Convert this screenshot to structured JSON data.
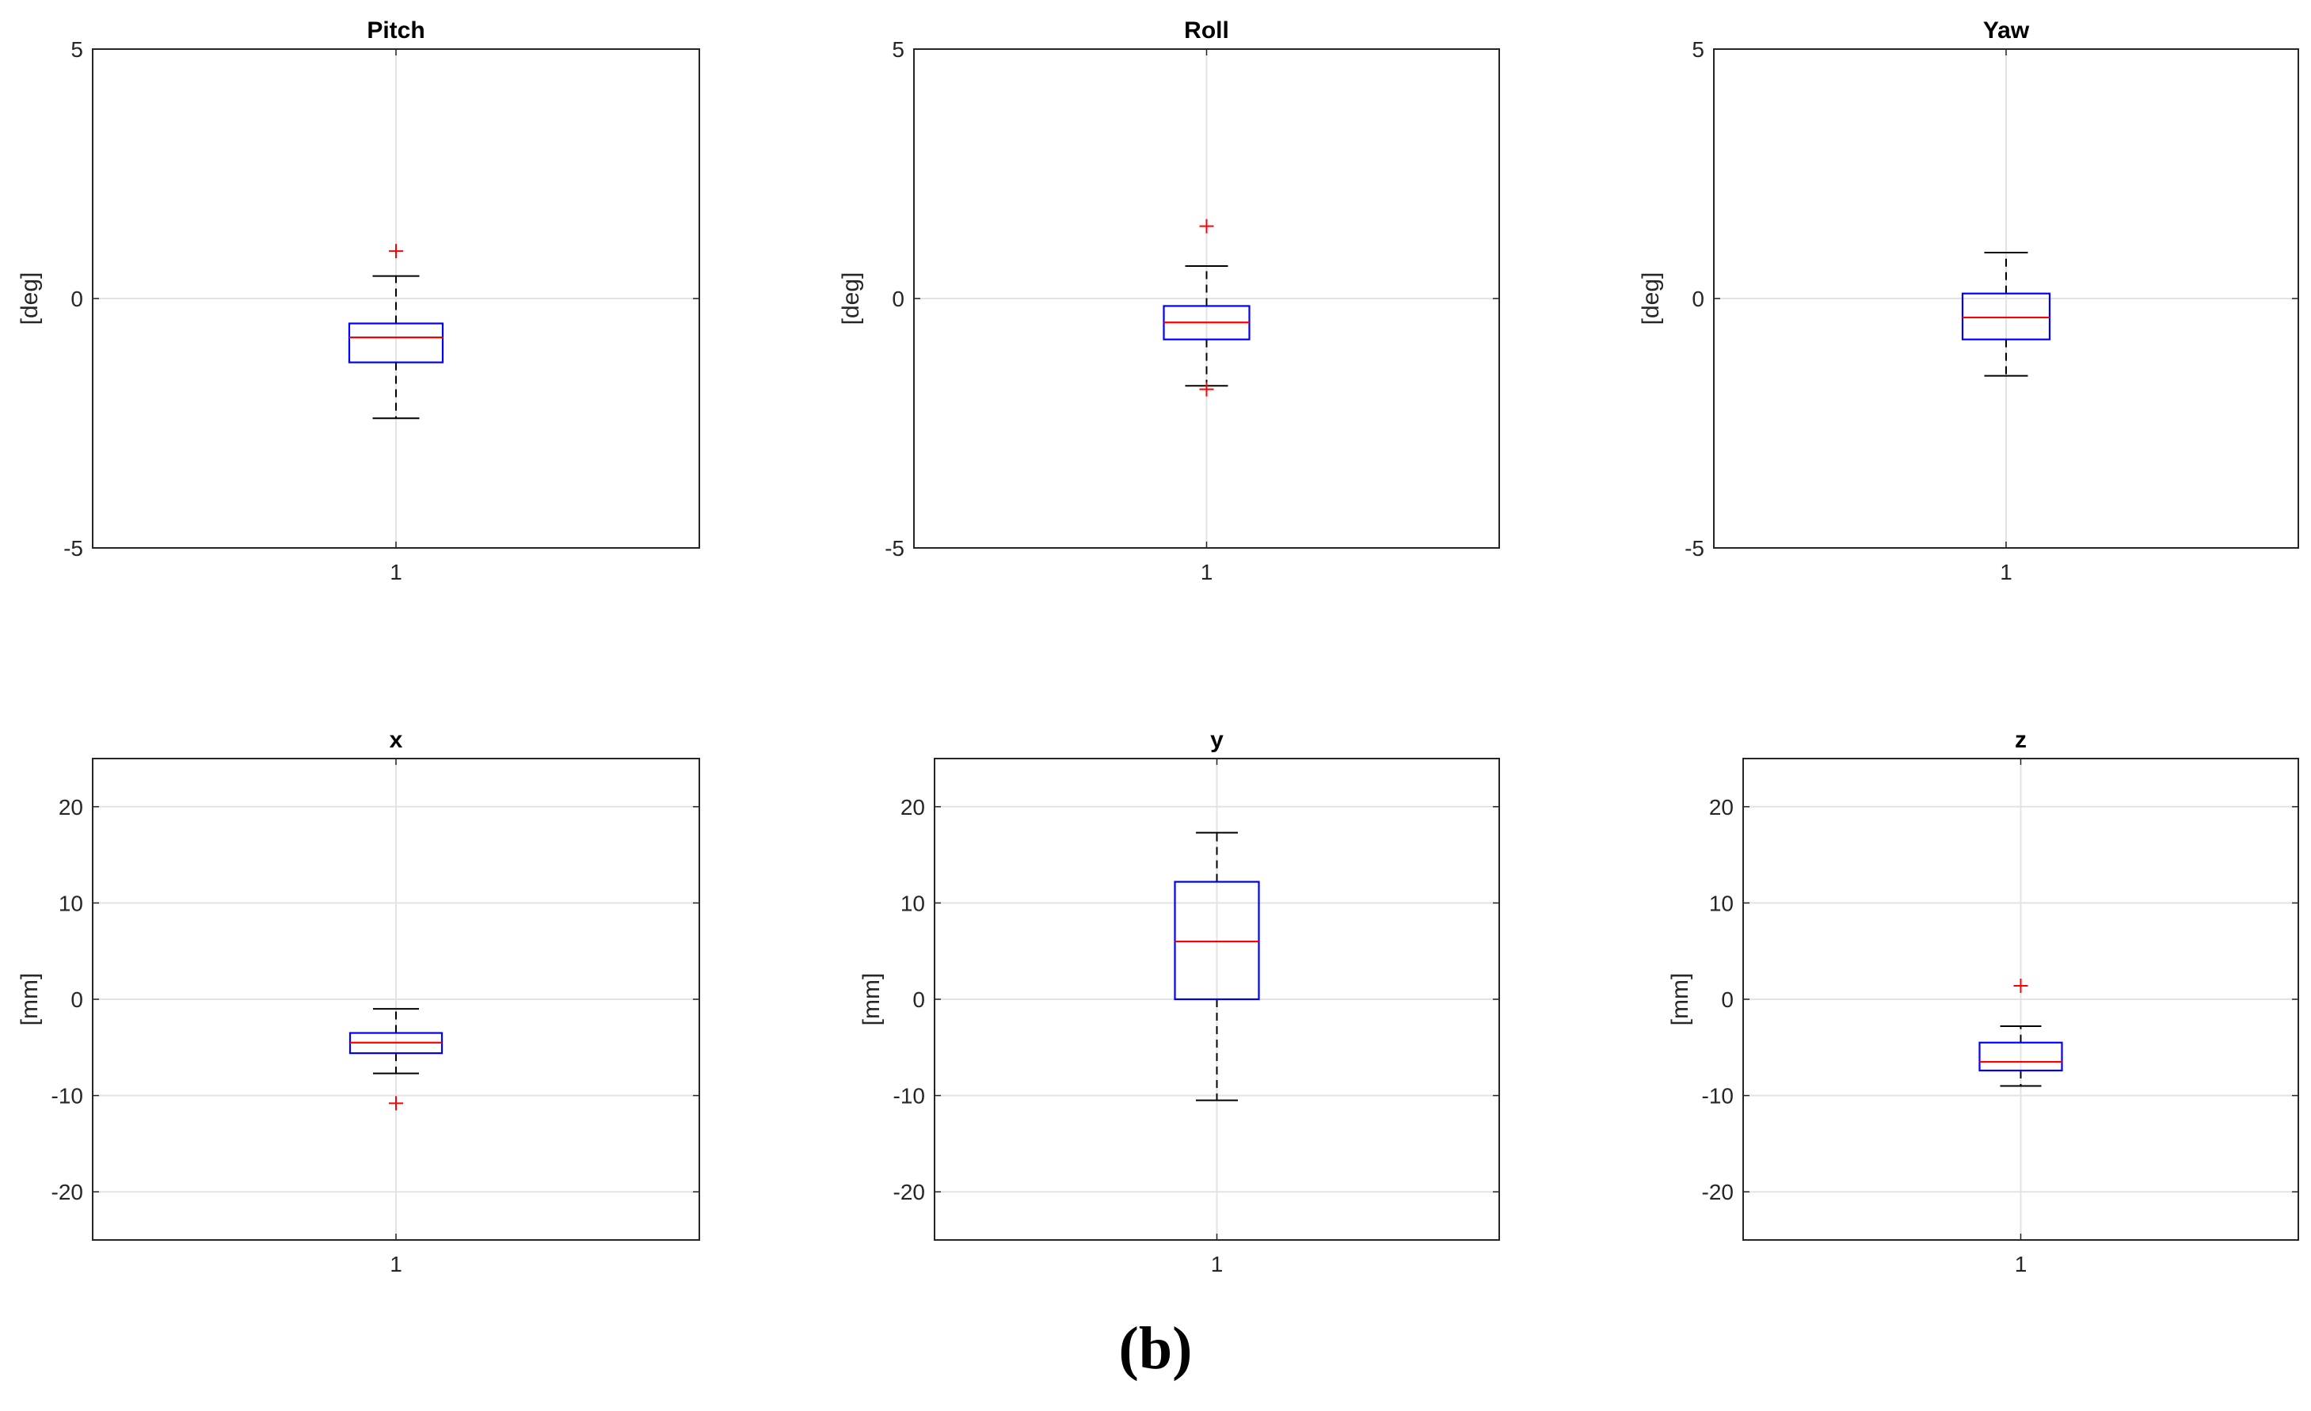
{
  "chart_data": [
    {
      "type": "box",
      "title": "Pitch",
      "ylabel": "[deg]",
      "ylim": [
        -5,
        5
      ],
      "yticks": [
        -5,
        0,
        5
      ],
      "categories": [
        "1"
      ],
      "box": {
        "q1": -1.28,
        "median": -0.78,
        "q3": -0.5,
        "whisker_low": -2.4,
        "whisker_high": 0.45,
        "outliers": [
          0.95
        ]
      },
      "grid": true,
      "colors": {
        "box": "#0000ff",
        "median": "#ff0000",
        "outlier": "#ff0000",
        "whisker": "#000000"
      }
    },
    {
      "type": "box",
      "title": "Roll",
      "ylabel": "[deg]",
      "ylim": [
        -5,
        5
      ],
      "yticks": [
        -5,
        0,
        5
      ],
      "categories": [
        "1"
      ],
      "box": {
        "q1": -0.82,
        "median": -0.48,
        "q3": -0.15,
        "whisker_low": -1.75,
        "whisker_high": 0.65,
        "outliers": [
          1.45,
          -1.82
        ]
      },
      "grid": true,
      "colors": {
        "box": "#0000ff",
        "median": "#ff0000",
        "outlier": "#ff0000",
        "whisker": "#000000"
      }
    },
    {
      "type": "box",
      "title": "Yaw",
      "ylabel": "[deg]",
      "ylim": [
        -5,
        5
      ],
      "yticks": [
        -5,
        0,
        5
      ],
      "categories": [
        "1"
      ],
      "box": {
        "q1": -0.82,
        "median": -0.38,
        "q3": 0.1,
        "whisker_low": -1.55,
        "whisker_high": 0.92,
        "outliers": []
      },
      "grid": true,
      "colors": {
        "box": "#0000ff",
        "median": "#ff0000",
        "outlier": "#ff0000",
        "whisker": "#000000"
      }
    },
    {
      "type": "box",
      "title": "x",
      "ylabel": "[mm]",
      "ylim": [
        -25,
        25
      ],
      "yticks": [
        -20,
        -10,
        0,
        10,
        20
      ],
      "categories": [
        "1"
      ],
      "box": {
        "q1": -5.6,
        "median": -4.5,
        "q3": -3.5,
        "whisker_low": -7.7,
        "whisker_high": -1.0,
        "outliers": [
          -10.8
        ]
      },
      "grid": true,
      "colors": {
        "box": "#0000ff",
        "median": "#ff0000",
        "outlier": "#ff0000",
        "whisker": "#000000"
      }
    },
    {
      "type": "box",
      "title": "y",
      "ylabel": "[mm]",
      "ylim": [
        -25,
        25
      ],
      "yticks": [
        -20,
        -10,
        0,
        10,
        20
      ],
      "categories": [
        "1"
      ],
      "box": {
        "q1": 0.0,
        "median": 6.0,
        "q3": 12.2,
        "whisker_low": -10.5,
        "whisker_high": 17.3,
        "outliers": []
      },
      "grid": true,
      "colors": {
        "box": "#0000ff",
        "median": "#ff0000",
        "outlier": "#ff0000",
        "whisker": "#000000"
      }
    },
    {
      "type": "box",
      "title": "z",
      "ylabel": "[mm]",
      "ylim": [
        -25,
        25
      ],
      "yticks": [
        -20,
        -10,
        0,
        10,
        20
      ],
      "categories": [
        "1"
      ],
      "box": {
        "q1": -7.4,
        "median": -6.5,
        "q3": -4.5,
        "whisker_low": -9.0,
        "whisker_high": -2.8,
        "outliers": [
          1.4
        ]
      },
      "grid": true,
      "colors": {
        "box": "#0000ff",
        "median": "#ff0000",
        "outlier": "#ff0000",
        "whisker": "#000000"
      }
    }
  ],
  "figure_label": "(b)"
}
